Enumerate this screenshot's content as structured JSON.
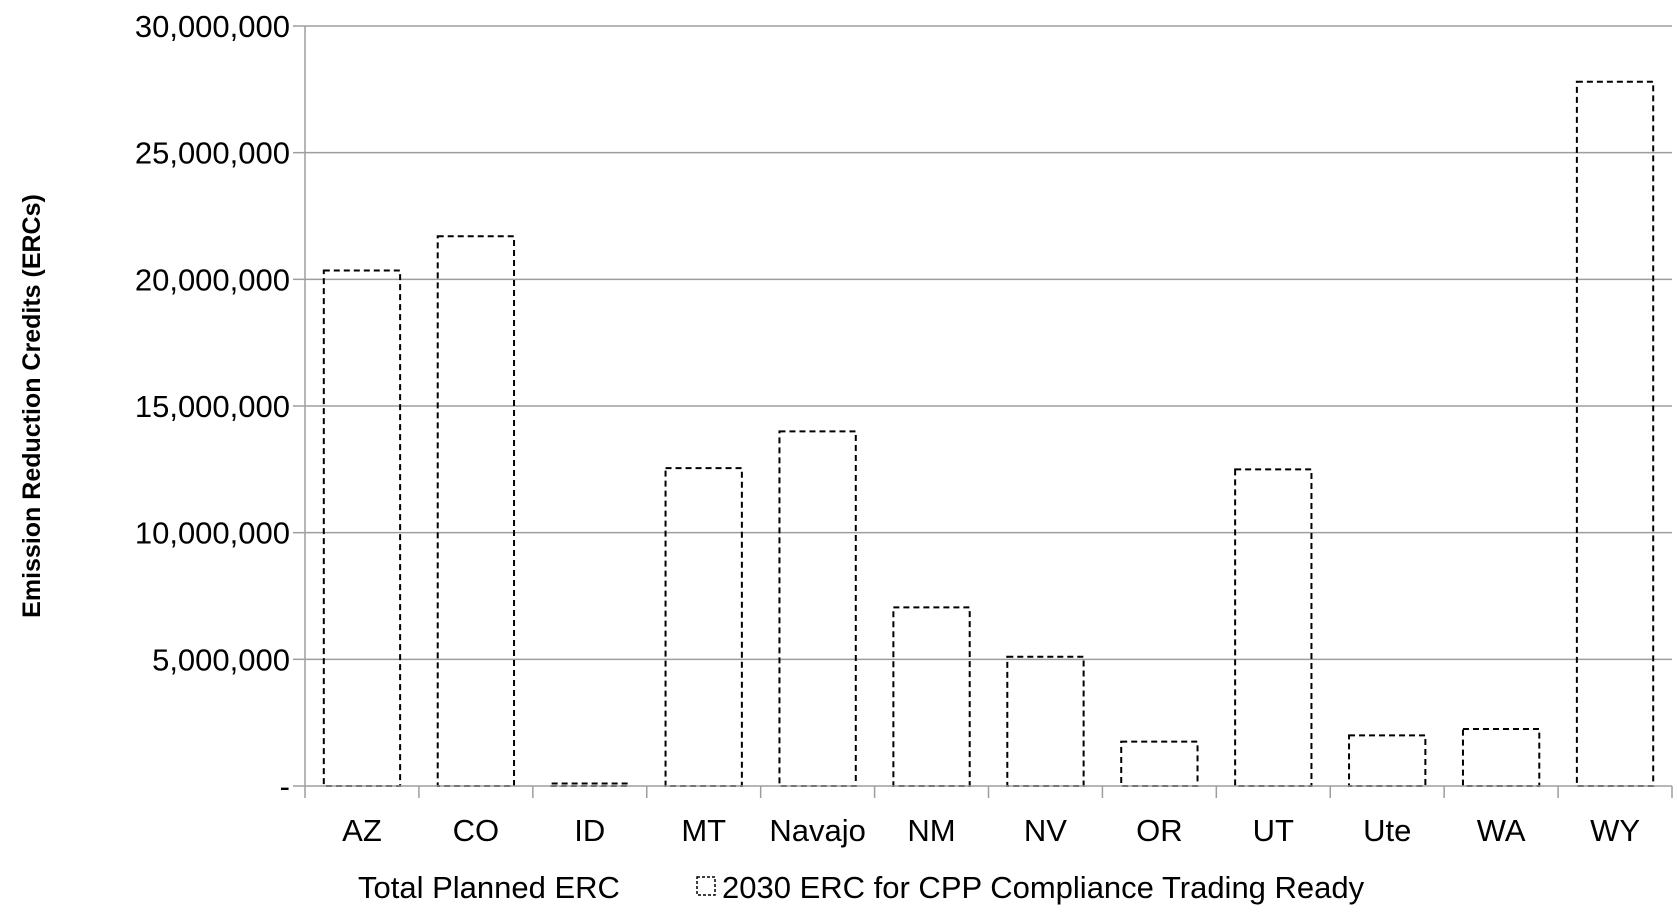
{
  "chart_data": {
    "type": "bar",
    "title": "",
    "xlabel": "",
    "ylabel": "Emission Reduction Credits (ERCs)",
    "categories": [
      "AZ",
      "CO",
      "ID",
      "MT",
      "Navajo",
      "NM",
      "NV",
      "OR",
      "UT",
      "Ute",
      "WA",
      "WY"
    ],
    "ylim": [
      0,
      30000000
    ],
    "yticks": [
      0,
      5000000,
      10000000,
      15000000,
      20000000,
      25000000,
      30000000
    ],
    "ytick_labels": [
      "-",
      "5,000,000",
      "10,000,000",
      "15,000,000",
      "20,000,000",
      "25,000,000",
      "30,000,000"
    ],
    "grid": true,
    "legend_position": "bottom",
    "series": [
      {
        "name": "Total Planned ERC",
        "style": "solid",
        "color": "#000000",
        "values": [
          0,
          0,
          0,
          0,
          0,
          0,
          0,
          0,
          0,
          0,
          0,
          0
        ]
      },
      {
        "name": "2030 ERC for CPP Compliance Trading Ready",
        "style": "dashed-outline",
        "color": "#000000",
        "values": [
          20350000,
          21700000,
          100000,
          12550000,
          14000000,
          7050000,
          5100000,
          1750000,
          12500000,
          2000000,
          2250000,
          27800000
        ]
      }
    ]
  },
  "colors": {
    "gridline": "#9e9e9e",
    "axis": "#9e9e9e",
    "bar_outline": "#000000",
    "text": "#000000"
  }
}
